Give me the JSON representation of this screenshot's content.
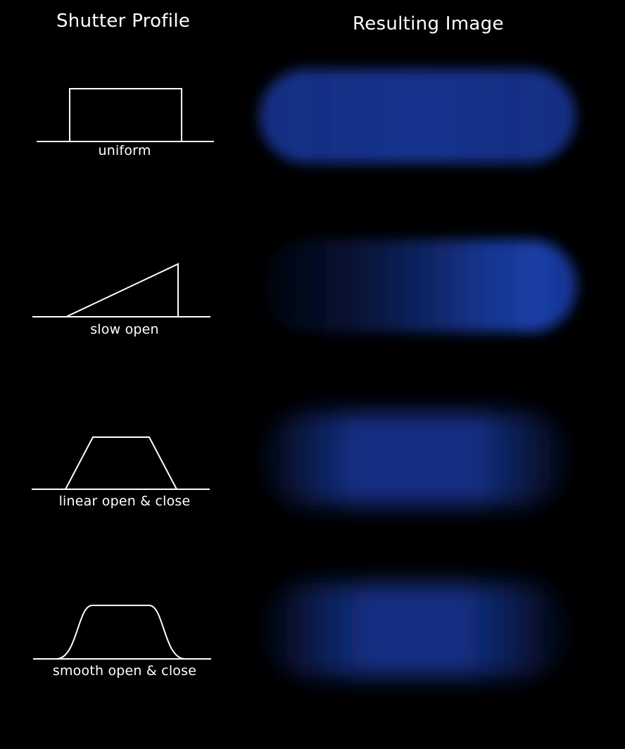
{
  "titles": {
    "left": "Shutter Profile",
    "right": "Resulting Image"
  },
  "profiles": [
    {
      "id": "uniform",
      "label": "uniform",
      "shape": "rectangle"
    },
    {
      "id": "slow-open",
      "label": "slow open",
      "shape": "ramp"
    },
    {
      "id": "linear",
      "label": "linear open & close",
      "shape": "trapezoid"
    },
    {
      "id": "smooth",
      "label": "smooth open & close",
      "shape": "smooth-trapezoid"
    }
  ],
  "colors": {
    "background": "#000000",
    "line": "#ffffff",
    "blur": "#16379a"
  }
}
